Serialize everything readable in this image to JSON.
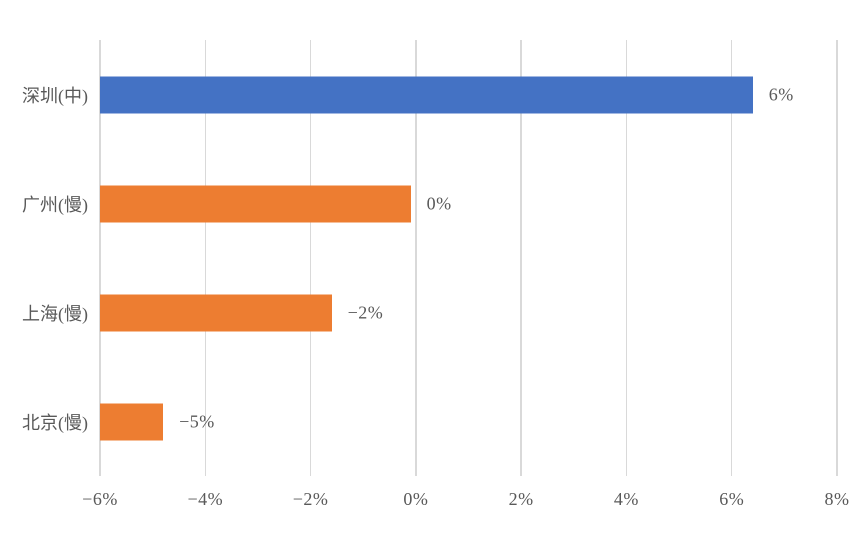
{
  "chart_data": {
    "type": "bar",
    "orientation": "horizontal",
    "title": "",
    "categories": [
      "深圳(中)",
      "广州(慢)",
      "上海(慢)",
      "北京(慢)"
    ],
    "values": [
      6.4,
      -0.1,
      -1.6,
      -4.8
    ],
    "value_labels": [
      "6%",
      "0%",
      "−2%",
      "−5%"
    ],
    "bar_colors": [
      "#4472C4",
      "#ED7D31",
      "#ED7D31",
      "#ED7D31"
    ],
    "x_axis": {
      "min": -6,
      "max": 8,
      "tick_step": 2,
      "tick_labels": [
        "−6%",
        "−4%",
        "−2%",
        "0%",
        "2%",
        "4%",
        "6%",
        "8%"
      ]
    },
    "bars_start_at_axis_min": true,
    "grid": true,
    "legend": "none",
    "colors": {
      "gridline": "#D9D9D9",
      "text": "#595959",
      "background": "#FFFFFF",
      "series_blue": "#4472C4",
      "series_orange": "#ED7D31"
    }
  }
}
